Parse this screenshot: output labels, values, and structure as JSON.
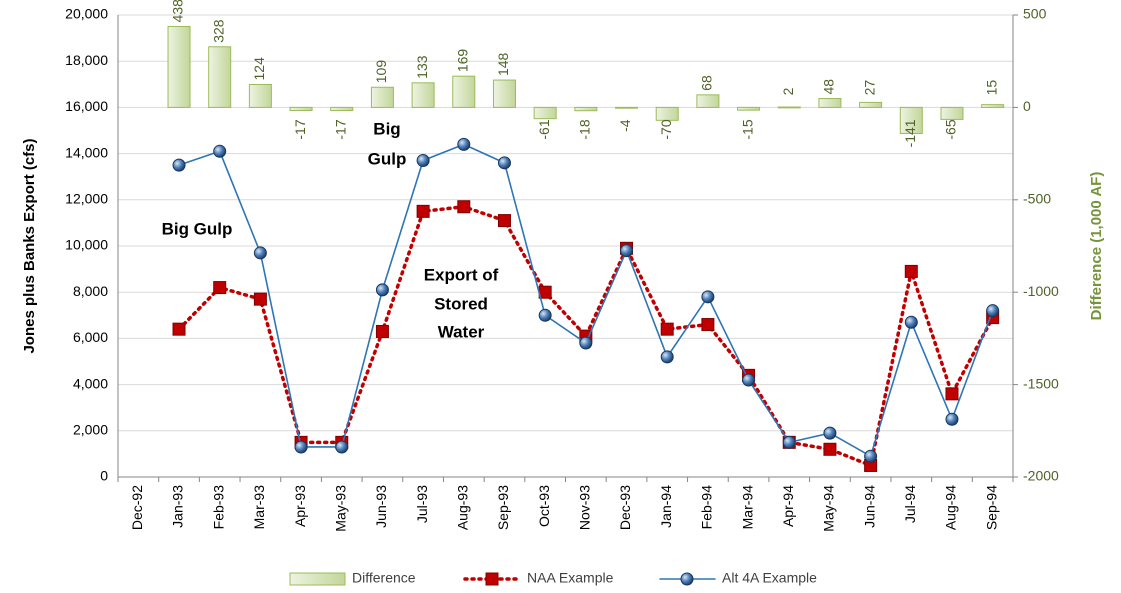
{
  "chart_data": {
    "type": "bar-line",
    "ylabel": "Jones plus Banks Export (cfs)",
    "y2label": "Difference (1,000 AF)",
    "categories": [
      "Dec-92",
      "Jan-93",
      "Feb-93",
      "Mar-93",
      "Apr-93",
      "May-93",
      "Jun-93",
      "Jul-93",
      "Aug-93",
      "Sep-93",
      "Oct-93",
      "Nov-93",
      "Dec-93",
      "Jan-94",
      "Feb-94",
      "Mar-94",
      "Apr-94",
      "May-94",
      "Jun-94",
      "Jul-94",
      "Aug-94",
      "Sep-94"
    ],
    "ylim": [
      0,
      20000
    ],
    "yticks": [
      0,
      {
        "value": 2000,
        "label": "2,000"
      },
      {
        "value": 4000,
        "label": "4,000"
      },
      {
        "value": 6000,
        "label": "6,000"
      },
      {
        "value": 8000,
        "label": "8,000"
      },
      {
        "value": 10000,
        "label": "10,000"
      },
      {
        "value": 12000,
        "label": "12,000"
      },
      {
        "value": 14000,
        "label": "14,000"
      },
      {
        "value": 16000,
        "label": "16,000"
      },
      {
        "value": 18000,
        "label": "18,000"
      },
      {
        "value": 20000,
        "label": "20,000"
      }
    ],
    "y2lim": [
      -2000,
      500
    ],
    "y2ticks": [
      -2000,
      -1500,
      -1000,
      -500,
      0,
      500
    ],
    "grid": true,
    "series": [
      {
        "name": "Difference",
        "type": "bar",
        "axis": "y2",
        "color": "#9bbb59",
        "values": [
          null,
          438,
          328,
          124,
          -17,
          -17,
          109,
          133,
          169,
          148,
          -61,
          -18,
          -4,
          -70,
          68,
          -15,
          2,
          48,
          27,
          -141,
          -65,
          15
        ]
      },
      {
        "name": "NAA Example",
        "type": "line",
        "color": "#c00000",
        "values": [
          null,
          6400,
          8200,
          7700,
          1500,
          1500,
          6300,
          11500,
          11700,
          11100,
          8000,
          6100,
          9900,
          6400,
          6600,
          4400,
          1500,
          1200,
          500,
          8900,
          3600,
          6900
        ]
      },
      {
        "name": "Alt 4A Example",
        "type": "line",
        "color": "#2e75b6",
        "values": [
          null,
          13500,
          14100,
          9700,
          1300,
          1300,
          8100,
          13700,
          14400,
          13600,
          7000,
          5800,
          9800,
          5200,
          7800,
          4200,
          1500,
          1900,
          900,
          6700,
          2500,
          7200
        ]
      }
    ],
    "annotations": [
      [
        "Big Gulp"
      ],
      [
        "Big",
        "Gulp"
      ],
      [
        "Export of",
        "Stored",
        "Water"
      ]
    ]
  }
}
